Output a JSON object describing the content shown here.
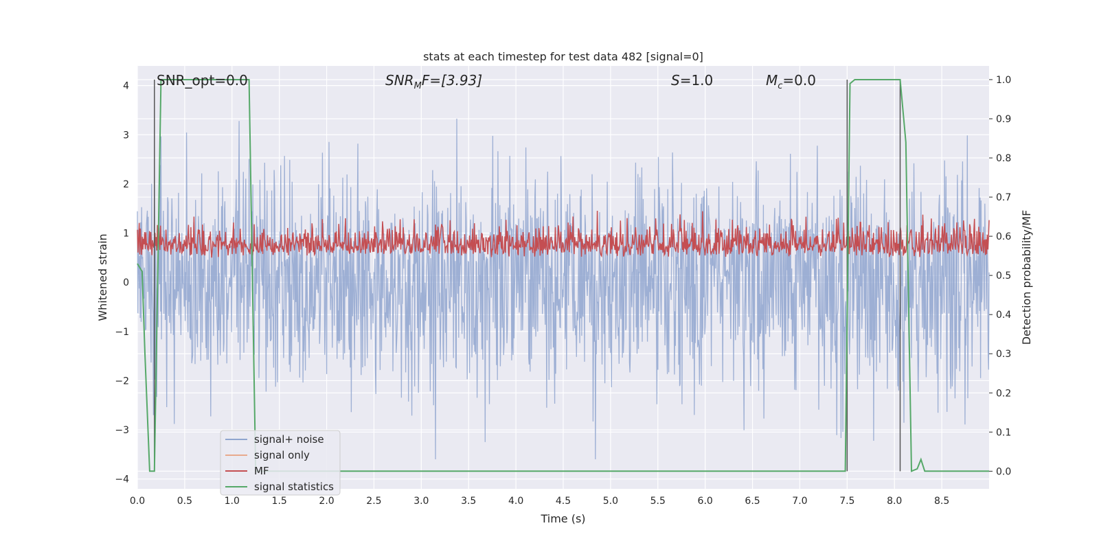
{
  "chart_data": {
    "type": "line",
    "title": "stats at each timestep for test data 482 [signal=0]",
    "xlabel": "Time (s)",
    "ylabel": "Whitened strain",
    "y2label": "Detection probability/MF",
    "xlim": [
      0.0,
      9.0
    ],
    "ylim": [
      -4.2,
      4.4
    ],
    "y2lim": [
      -0.045,
      1.035
    ],
    "xticks": [
      0.0,
      0.5,
      1.0,
      1.5,
      2.0,
      2.5,
      3.0,
      3.5,
      4.0,
      4.5,
      5.0,
      5.5,
      6.0,
      6.5,
      7.0,
      7.5,
      8.0,
      8.5
    ],
    "xtick_labels": [
      "0.0",
      "0.5",
      "1.0",
      "1.5",
      "2.0",
      "2.5",
      "3.0",
      "3.5",
      "4.0",
      "4.5",
      "5.0",
      "5.5",
      "6.0",
      "6.5",
      "7.0",
      "7.5",
      "8.0",
      "8.5"
    ],
    "yticks": [
      -4,
      -3,
      -2,
      -1,
      0,
      1,
      2,
      3,
      4
    ],
    "ytick_labels": [
      "−4",
      "−3",
      "−2",
      "−1",
      "0",
      "1",
      "2",
      "3",
      "4"
    ],
    "y2ticks": [
      0.0,
      0.1,
      0.2,
      0.3,
      0.4,
      0.5,
      0.6,
      0.7,
      0.8,
      0.9,
      1.0
    ],
    "y2tick_labels": [
      "0.0",
      "0.1",
      "0.2",
      "0.3",
      "0.4",
      "0.5",
      "0.6",
      "0.7",
      "0.8",
      "0.9",
      "1.0"
    ],
    "grid": true,
    "legend_position": "lower-left",
    "annotations": {
      "snr_opt": "SNR_opt=0.0",
      "snr_mf_main": "SNR",
      "snr_mf_sub": "M",
      "snr_mf_rest": "F=[3.93]",
      "s_main": "S",
      "s_rest": "=1.0",
      "mc_main": "M",
      "mc_sub": "c",
      "mc_rest": "=0.0"
    },
    "series": [
      {
        "name": "signal+ noise",
        "color": "#8fa5cf",
        "axis": "left",
        "description_values": "dense whitened noise, samples mostly within ±2.5, peaks near 4 and -3.5"
      },
      {
        "name": "signal only",
        "color": "#e8a98c",
        "axis": "left",
        "values": []
      },
      {
        "name": "MF",
        "color": "#c44e52",
        "axis": "right",
        "description_values": "matched-filter output fluctuating between about 0.5 and 0.69"
      },
      {
        "name": "signal statistics",
        "color": "#55a868",
        "axis": "right",
        "x": [
          0.0,
          0.05,
          0.08,
          0.13,
          0.18,
          0.25,
          1.18,
          1.25,
          7.48,
          7.53,
          7.58,
          8.06,
          8.12,
          8.18,
          8.24,
          8.28,
          8.32,
          8.38,
          9.0
        ],
        "y": [
          0.53,
          0.51,
          0.3,
          0.0,
          0.0,
          1.0,
          1.0,
          0.0,
          0.0,
          0.99,
          1.0,
          1.0,
          0.84,
          0.0,
          0.006,
          0.03,
          0.0,
          0.0,
          0.0
        ]
      }
    ],
    "vertical_lines_x": [
      0.18,
      7.5,
      8.06
    ],
    "vertical_line_color": "#555555"
  }
}
